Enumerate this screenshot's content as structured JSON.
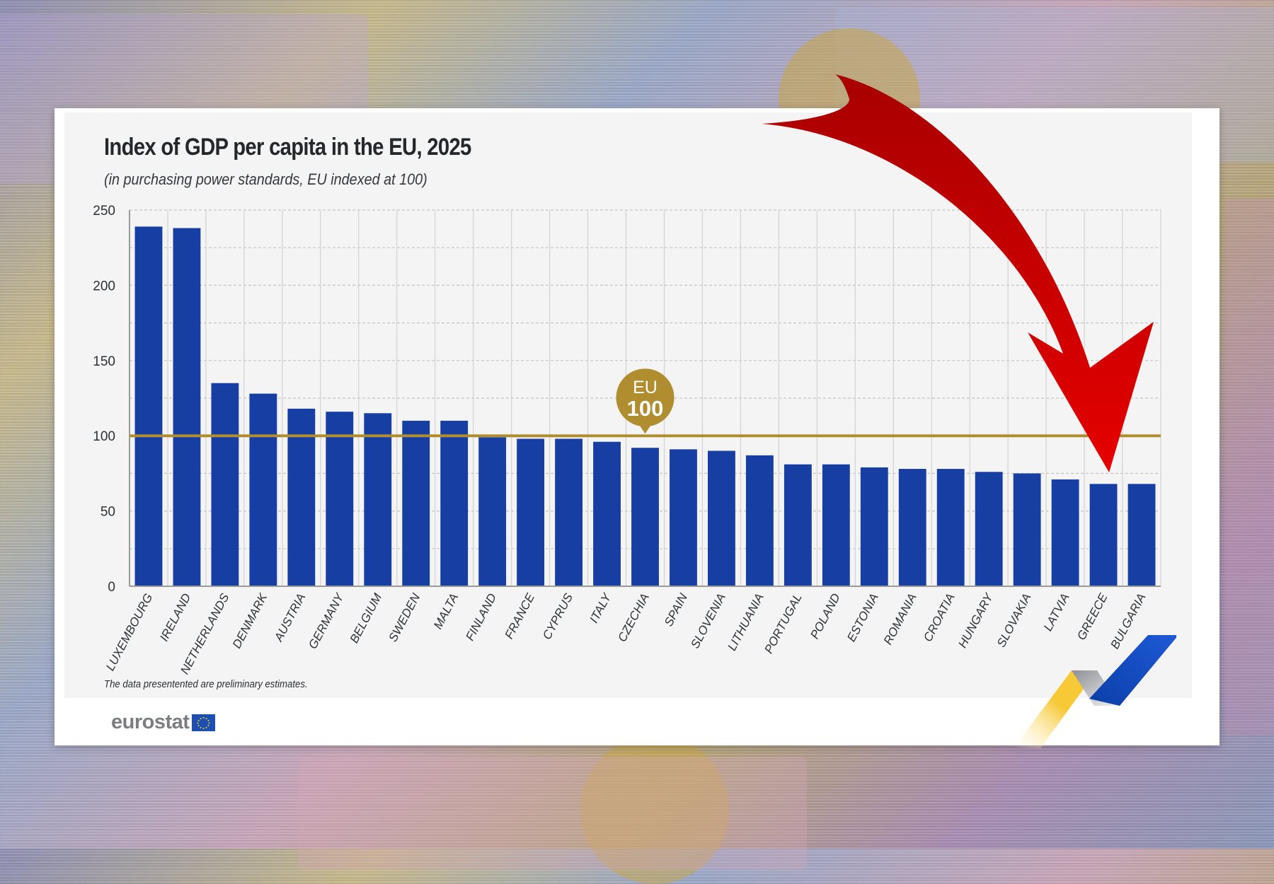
{
  "chart_data": {
    "type": "bar",
    "title": "Index of GDP per capita in the EU, 2025",
    "subtitle": "(in purchasing power standards, EU indexed at 100)",
    "xlabel": "",
    "ylabel": "",
    "ylim": [
      0,
      250
    ],
    "yticks": [
      0,
      50,
      100,
      150,
      200,
      250
    ],
    "grid": true,
    "reference_line": {
      "value": 100,
      "label_top": "EU",
      "label_bottom": "100",
      "color": "#b08d2e"
    },
    "bar_color": "#173fa3",
    "categories": [
      "LUXEMBOURG",
      "IRELAND",
      "NETHERLANDS",
      "DENMARK",
      "AUSTRIA",
      "GERMANY",
      "BELGIUM",
      "SWEDEN",
      "MALTA",
      "FINLAND",
      "FRANCE",
      "CYPRUS",
      "ITALY",
      "CZECHIA",
      "SPAIN",
      "SLOVENIA",
      "LITHUANIA",
      "PORTUGAL",
      "POLAND",
      "ESTONIA",
      "ROMANIA",
      "CROATIA",
      "HUNGARY",
      "SLOVAKIA",
      "LATVIA",
      "GREECE",
      "BULGARIA"
    ],
    "values": [
      239,
      238,
      135,
      128,
      118,
      116,
      115,
      110,
      110,
      99,
      98,
      98,
      96,
      92,
      91,
      90,
      87,
      81,
      81,
      79,
      78,
      78,
      76,
      75,
      71,
      68,
      68
    ],
    "annotations": [
      {
        "type": "arrow",
        "color": "#d40000",
        "points_to": "GREECE"
      }
    ],
    "footnote": "The data presentented are preliminary estimates."
  },
  "branding": {
    "source_logo": "eurostat",
    "source_logo_icon": "eu-flag-icon"
  }
}
